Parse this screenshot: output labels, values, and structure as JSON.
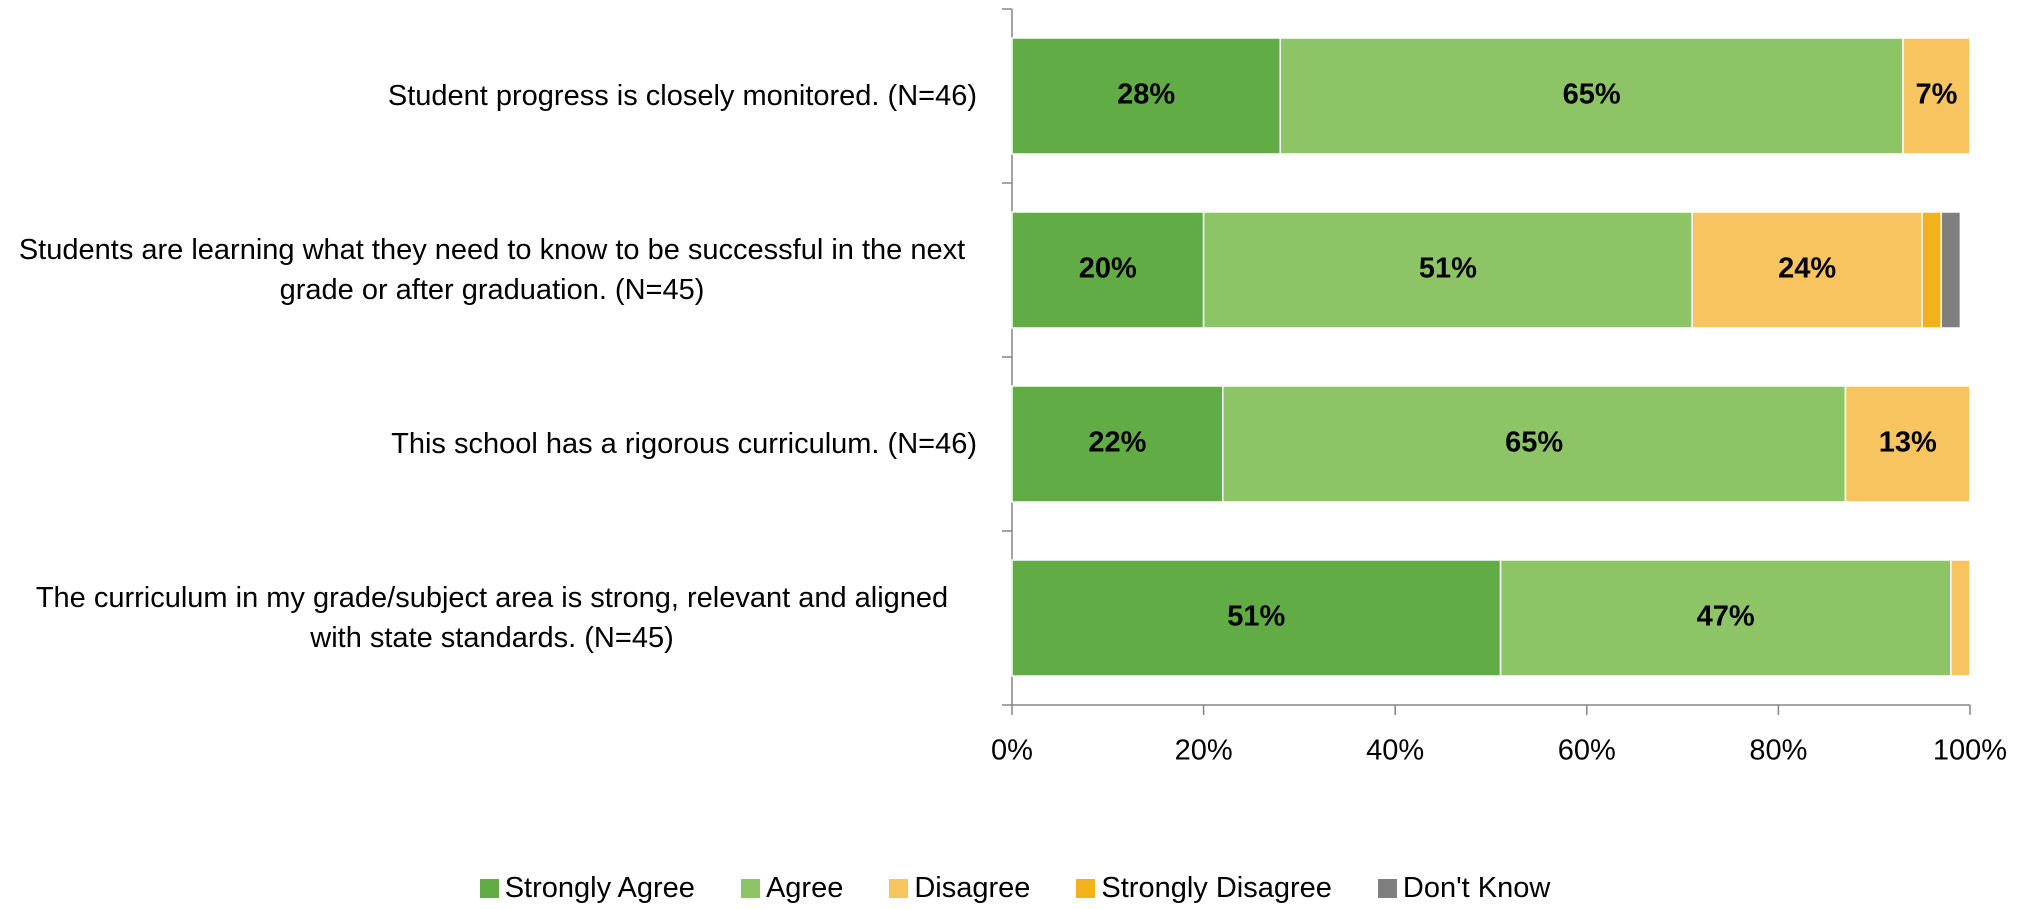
{
  "chart_data": {
    "type": "stacked-bar-horizontal",
    "categories": [
      "Student progress is closely monitored. (N=46)",
      "Students are learning what they need to know to be successful in the next grade or after graduation. (N=45)",
      "This school has a rigorous curriculum. (N=46)",
      "The curriculum in my grade/subject area is strong, relevant and aligned with state standards. (N=45)"
    ],
    "series": [
      {
        "name": "Strongly Agree",
        "color": "#62ac46",
        "values": [
          28,
          20,
          22,
          51
        ],
        "value_labels": [
          "28%",
          "20%",
          "22%",
          "51%"
        ]
      },
      {
        "name": "Agree",
        "color": "#8dc466",
        "values": [
          65,
          51,
          65,
          47
        ],
        "value_labels": [
          "65%",
          "51%",
          "65%",
          "47%"
        ]
      },
      {
        "name": "Disagree",
        "color": "#f7c45f",
        "values": [
          7,
          24,
          13,
          2
        ],
        "value_labels": [
          "7%",
          "24%",
          "13%",
          null
        ]
      },
      {
        "name": "Strongly Disagree",
        "color": "#f2b21a",
        "values": [
          0,
          2,
          0,
          0
        ],
        "value_labels": [
          null,
          null,
          null,
          null
        ]
      },
      {
        "name": "Don't Know",
        "color": "#7f7f7f",
        "values": [
          0,
          2,
          0,
          0
        ],
        "value_labels": [
          null,
          null,
          null,
          null
        ]
      }
    ],
    "xlim": [
      0,
      100
    ],
    "xticks": [
      {
        "value": 0,
        "label": "0%"
      },
      {
        "value": 20,
        "label": "20%"
      },
      {
        "value": 40,
        "label": "40%"
      },
      {
        "value": 60,
        "label": "60%"
      },
      {
        "value": 80,
        "label": "80%"
      },
      {
        "value": 100,
        "label": "100%"
      }
    ],
    "legend": "bottom"
  }
}
